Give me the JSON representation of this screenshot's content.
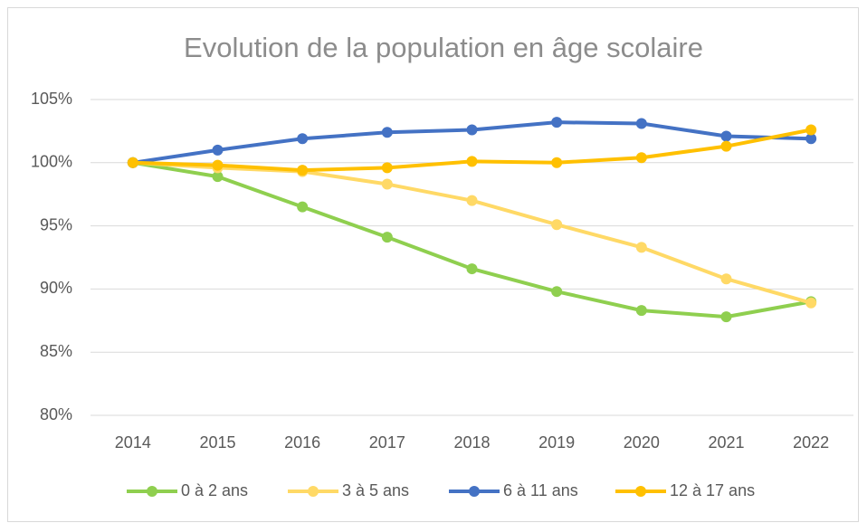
{
  "chart_data": {
    "type": "line",
    "title": "Evolution de la population en âge scolaire",
    "categories": [
      "2014",
      "2015",
      "2016",
      "2017",
      "2018",
      "2019",
      "2020",
      "2021",
      "2022"
    ],
    "series": [
      {
        "name": "0 à 2 ans",
        "color": "#8fcf4f",
        "values": [
          100,
          98.9,
          96.5,
          94.1,
          91.6,
          89.8,
          88.3,
          87.8,
          89.0
        ]
      },
      {
        "name": "3 à 5 ans",
        "color": "#ffd966",
        "values": [
          100,
          99.6,
          99.3,
          98.3,
          97.0,
          95.1,
          93.3,
          90.8,
          88.9
        ]
      },
      {
        "name": "6 à 11 ans",
        "color": "#4472c4",
        "values": [
          100,
          101.0,
          101.9,
          102.4,
          102.6,
          103.2,
          103.1,
          102.1,
          101.9
        ]
      },
      {
        "name": "12 à 17 ans",
        "color": "#ffc000",
        "values": [
          100,
          99.8,
          99.4,
          99.6,
          100.1,
          100.0,
          100.4,
          101.3,
          102.6
        ]
      }
    ],
    "ylim": [
      80,
      105
    ],
    "yticks": [
      {
        "value": 80,
        "label": "80%"
      },
      {
        "value": 85,
        "label": "85%"
      },
      {
        "value": 90,
        "label": "90%"
      },
      {
        "value": 95,
        "label": "95%"
      },
      {
        "value": 100,
        "label": "100%"
      },
      {
        "value": 105,
        "label": "105%"
      }
    ],
    "grid": true,
    "legend": "bottom"
  }
}
